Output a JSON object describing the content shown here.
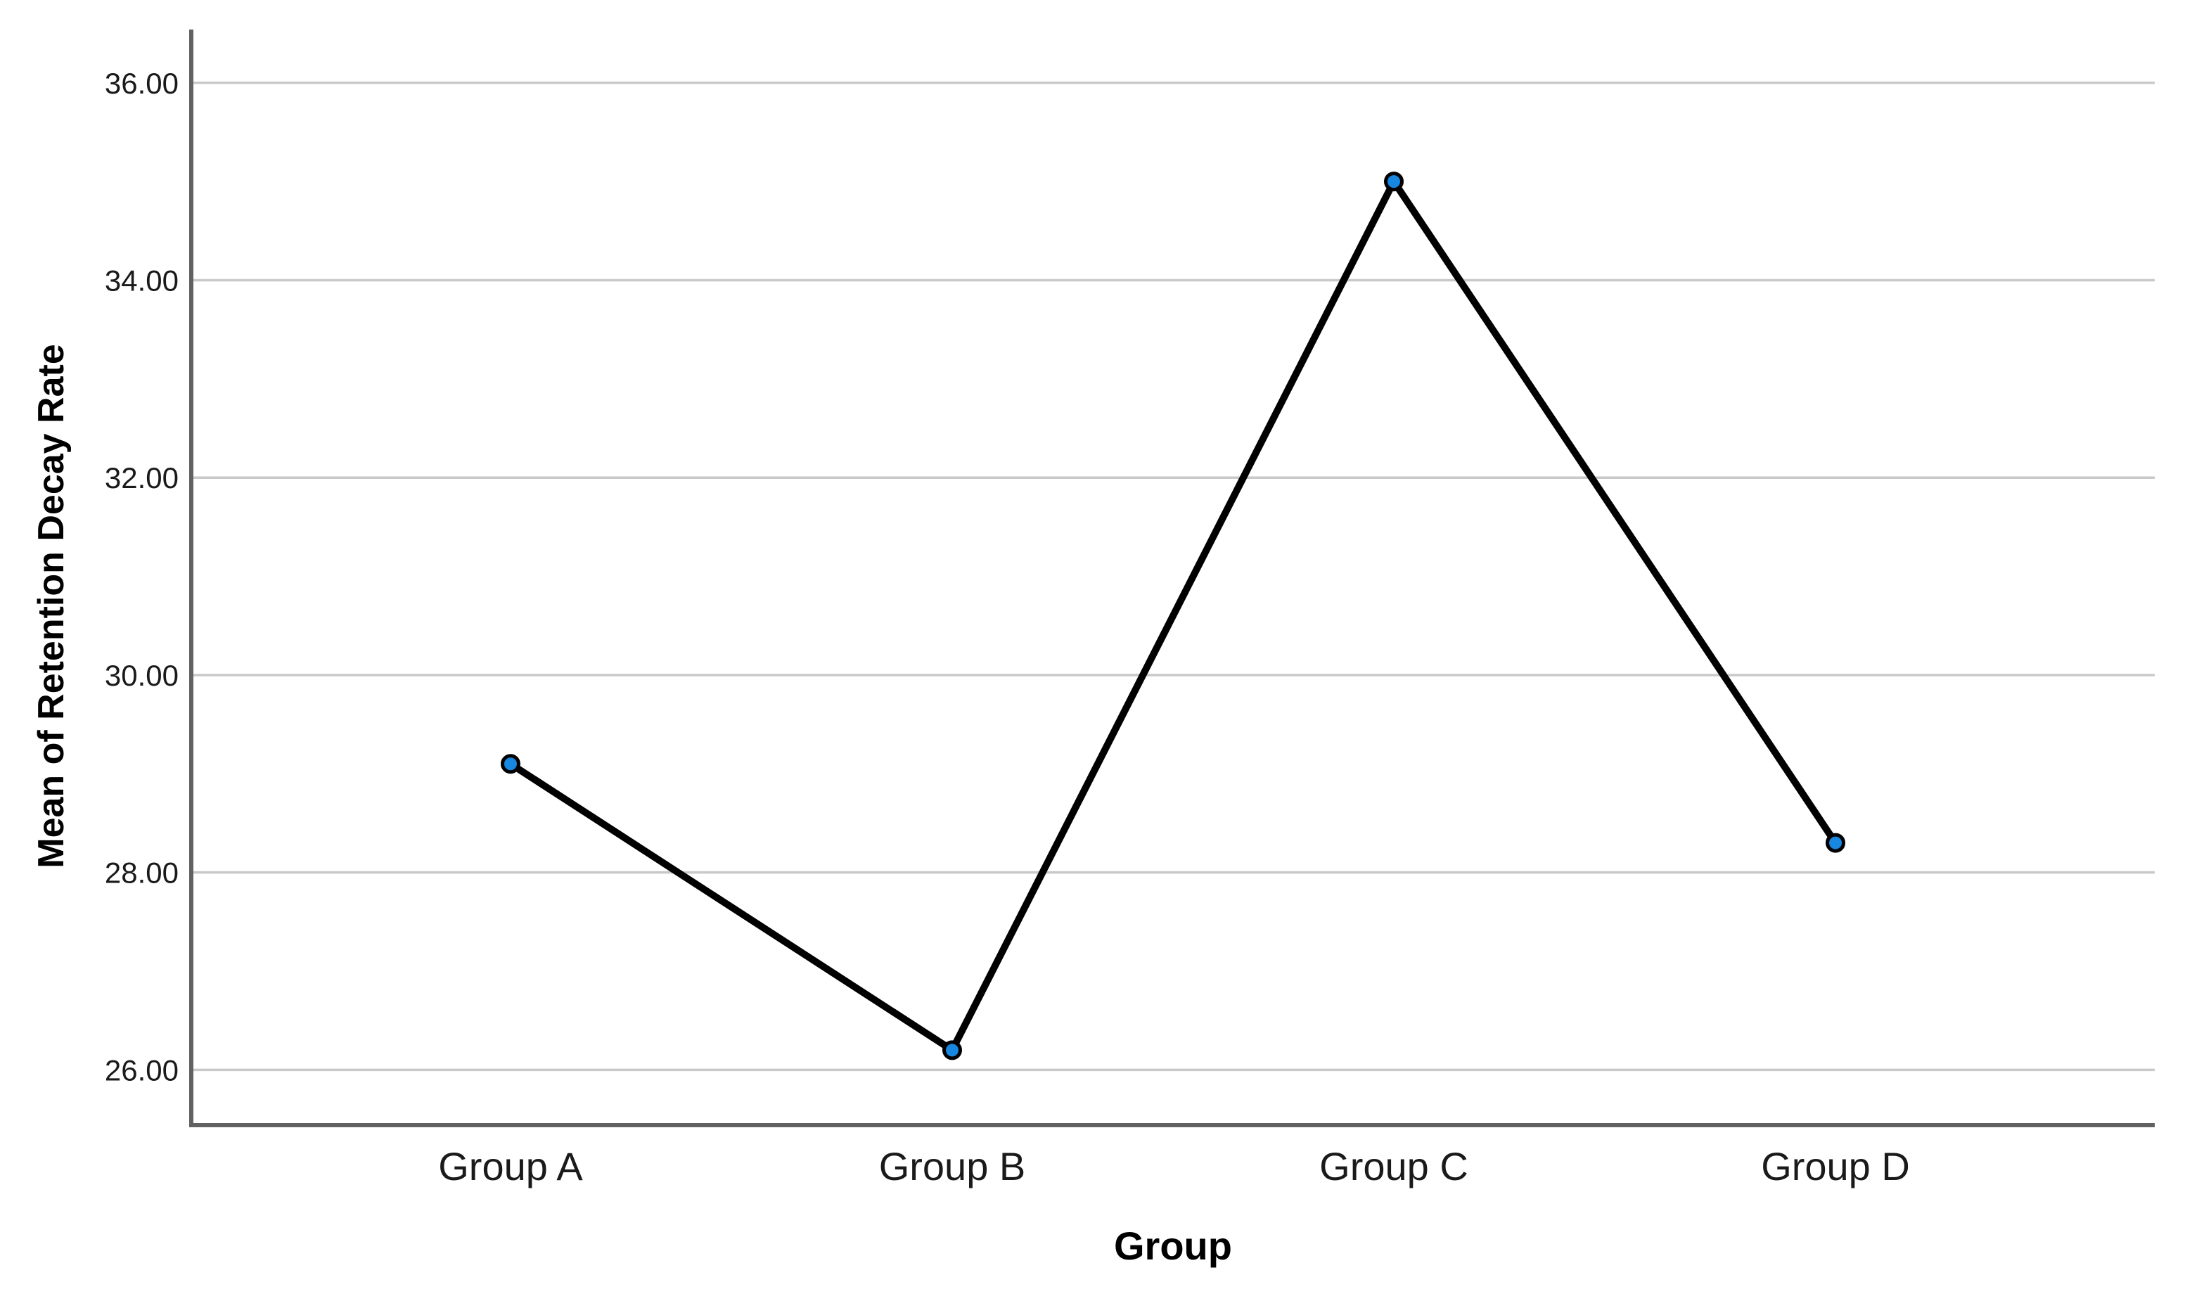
{
  "page": {
    "background": "#ffffff"
  },
  "chart_data": {
    "type": "line",
    "title": "",
    "xlabel": "Group",
    "ylabel": "Mean of Retention Decay Rate",
    "categories": [
      "Group A",
      "Group B",
      "Group C",
      "Group D"
    ],
    "series": [
      {
        "name": "Mean of Retention Decay Rate",
        "values": [
          29.1,
          26.2,
          35.0,
          28.3
        ]
      }
    ],
    "ylim": [
      25.44,
      36.54
    ],
    "yticks": [
      {
        "value": 36,
        "label": "36.00"
      },
      {
        "value": 34,
        "label": "34.00"
      },
      {
        "value": 32,
        "label": "32.00"
      },
      {
        "value": 30,
        "label": "30.00"
      },
      {
        "value": 28,
        "label": "28.00"
      },
      {
        "value": 26,
        "label": "26.00"
      }
    ],
    "grid": "horizontal",
    "legend_position": "none",
    "marker": "filled-circle",
    "colors": {
      "line": "#000000",
      "marker_fill": "#1787e0",
      "marker_stroke": "#000000",
      "gridline": "#c9c9c9",
      "axis": "#616161",
      "tick_text": "#1a1a1a",
      "title_text": "#000000"
    }
  }
}
